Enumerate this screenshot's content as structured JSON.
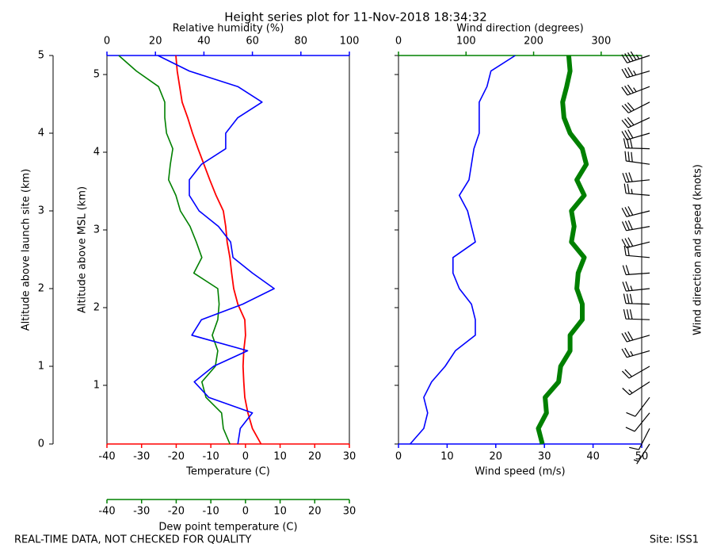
{
  "title": "Height series plot for 11-Nov-2018 18:34:32",
  "footer_left": "REAL-TIME DATA, NOT CHECKED FOR QUALITY",
  "footer_right": "Site: ISS1",
  "chart_data": [
    {
      "type": "profile",
      "y": [
        0,
        0.2,
        0.4,
        0.6,
        0.8,
        1.0,
        1.2,
        1.4,
        1.6,
        1.8,
        2.0,
        2.2,
        2.4,
        2.6,
        2.8,
        3.0,
        3.2,
        3.4,
        3.6,
        3.8,
        4.0,
        4.2,
        4.4,
        4.6,
        4.8,
        5.0
      ],
      "ylim": [
        0,
        5
      ],
      "yticks": [
        0,
        1,
        2,
        3,
        4,
        5
      ],
      "ylabel": "Altitude above launch site (km)",
      "y2lim": [
        0.245,
        5.245
      ],
      "y2ticks": [
        1,
        2,
        3,
        4,
        5
      ],
      "y2label": "Altitude above MSL (km)",
      "xlim": [
        -40,
        30
      ],
      "xticks": [
        -40,
        -30,
        -20,
        -10,
        0,
        10,
        20,
        30
      ],
      "xlabel": "Temperature (C)",
      "xcolor": "#ff0000",
      "x2lim": [
        0,
        100
      ],
      "x2ticks": [
        0,
        20,
        40,
        60,
        80,
        100
      ],
      "x2label": "Relative humidity (%)",
      "x2color": "#0000ff",
      "x3lim": [
        -40,
        30
      ],
      "x3ticks": [
        -40,
        -30,
        -20,
        -10,
        0,
        10,
        20,
        30
      ],
      "x3label": "Dew point temperature (C)",
      "x3color": "#008000",
      "series": [
        {
          "axis": "x",
          "color": "#ff0000",
          "width": 1.8,
          "values": [
            4.5,
            2,
            0.7,
            -0.2,
            -0.5,
            -0.7,
            -0.5,
            0,
            -0.2,
            -2.2,
            -3.4,
            -4,
            -4.5,
            -5.3,
            -5.7,
            -6.4,
            -8.5,
            -10.3,
            -12,
            -13.7,
            -15.3,
            -16.7,
            -18.3,
            -19,
            -19.7,
            -20.1
          ]
        },
        {
          "axis": "x3",
          "color": "#008000",
          "width": 1.6,
          "values": [
            -4.5,
            -6.4,
            -6.9,
            -11.4,
            -12.6,
            -8.7,
            -8,
            -9.6,
            -8,
            -7.6,
            -8,
            -14.9,
            -12.6,
            -14.2,
            -16,
            -18.8,
            -20.1,
            -22.2,
            -21.7,
            -21,
            -22.8,
            -23.3,
            -23.3,
            -25.1,
            -31.5,
            -36.6
          ]
        },
        {
          "axis": "x2",
          "color": "#0000ff",
          "width": 1.6,
          "values": [
            54,
            55,
            60,
            42,
            36,
            44,
            58,
            35,
            39,
            56,
            69,
            60,
            52,
            51,
            46,
            38,
            34,
            34,
            39,
            49,
            49,
            54,
            64,
            54,
            34,
            21
          ]
        }
      ]
    },
    {
      "type": "wind-profile",
      "y": [
        0,
        0.2,
        0.4,
        0.6,
        0.8,
        1.0,
        1.2,
        1.4,
        1.6,
        1.8,
        2.0,
        2.2,
        2.4,
        2.6,
        2.8,
        3.0,
        3.2,
        3.4,
        3.6,
        3.8,
        4.0,
        4.2,
        4.4,
        4.6,
        4.8,
        5.0
      ],
      "ylim": [
        0,
        5
      ],
      "xlim": [
        0,
        50
      ],
      "xticks": [
        0,
        10,
        20,
        30,
        40,
        50
      ],
      "xlabel": "Wind speed (m/s)",
      "xcolor": "#0000ff",
      "x2lim": [
        0,
        360
      ],
      "x2ticks": [
        0,
        100,
        200,
        300
      ],
      "x2label": "Wind direction (degrees)",
      "x2color": "#008000",
      "barb_label": "Wind direction and speed (knots)",
      "series": [
        {
          "axis": "x",
          "color": "#0000ff",
          "width": 1.6,
          "values": [
            2.4,
            5.2,
            6,
            5.2,
            6.8,
            9.6,
            11.7,
            15.8,
            15.8,
            15,
            12.5,
            11.2,
            11.2,
            15.8,
            15,
            14.2,
            12.5,
            14.5,
            15,
            15.5,
            16.6,
            16.6,
            16.6,
            18.2,
            19,
            24
          ]
        },
        {
          "axis": "x2",
          "color": "#008000",
          "width": 6,
          "values": [
            213,
            207,
            219,
            217,
            237,
            240,
            254,
            254,
            272,
            272,
            264,
            266,
            275,
            256,
            260,
            256,
            275,
            264,
            278,
            272,
            254,
            245,
            243,
            249,
            254,
            252
          ]
        }
      ]
    }
  ]
}
